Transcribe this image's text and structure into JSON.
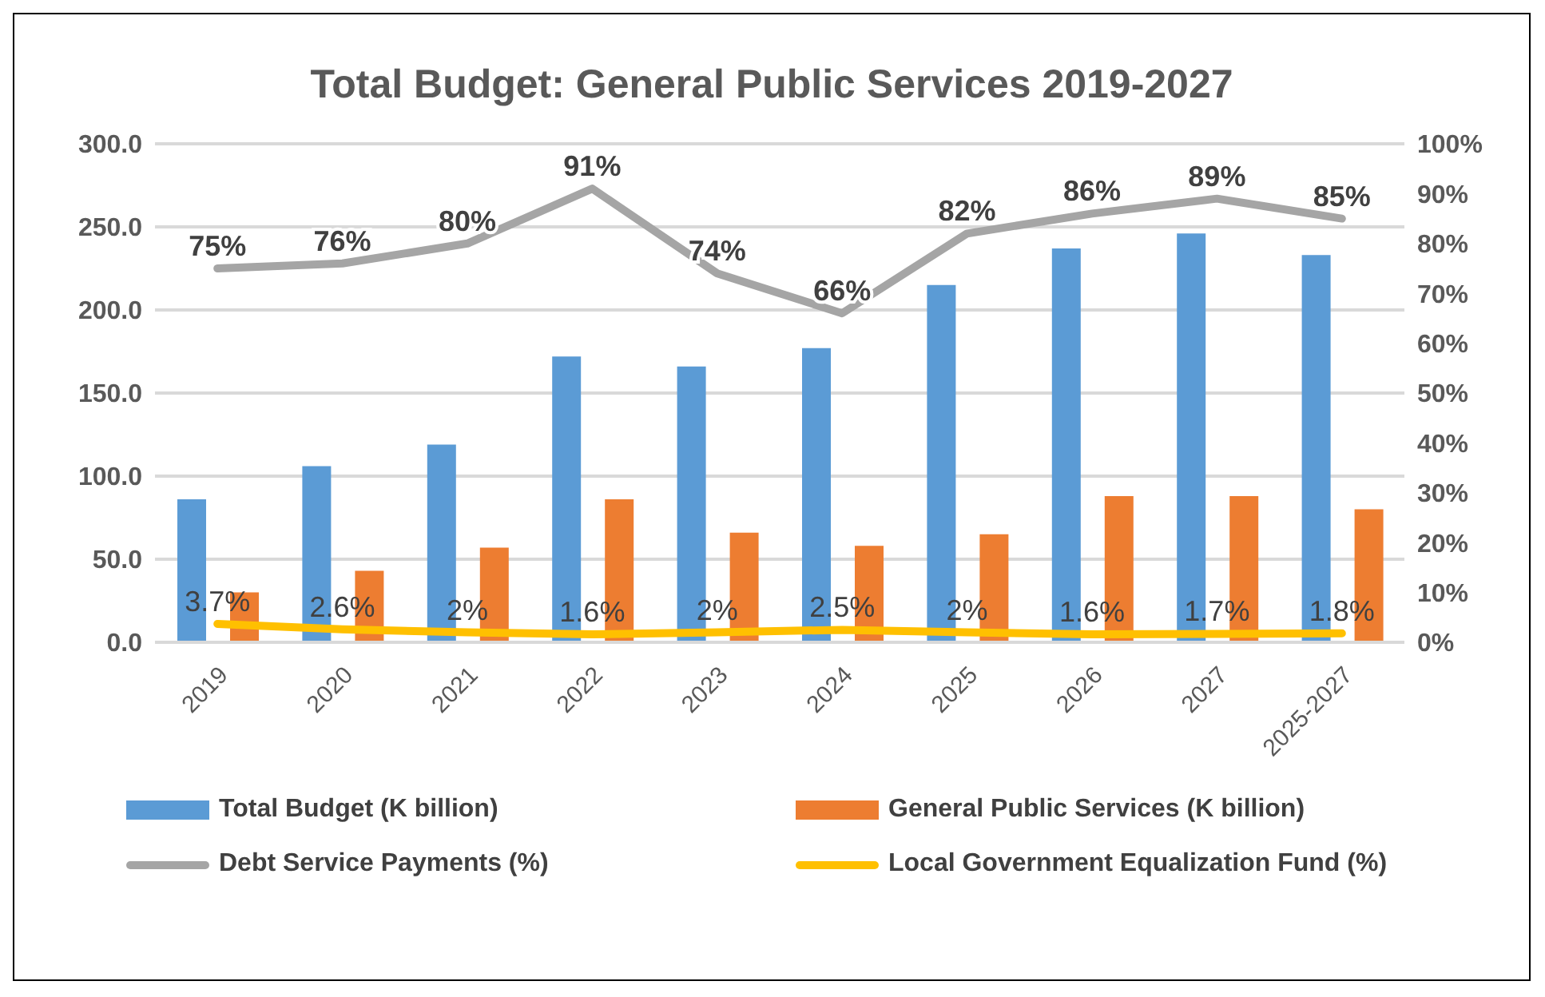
{
  "chart_data": {
    "type": "bar",
    "title": "Total Budget: General Public Services 2019-2027",
    "categories": [
      "2019",
      "2020",
      "2021",
      "2022",
      "2023",
      "2024",
      "2025",
      "2026",
      "2027",
      "2025-2027"
    ],
    "series": [
      {
        "name": "Total Budget (K billion)",
        "color": "#5b9bd5",
        "values": [
          86,
          106,
          119,
          172,
          166,
          177,
          215,
          237,
          246,
          233
        ]
      },
      {
        "name": "General Public Services (K billion)",
        "color": "#ed7d31",
        "values": [
          30,
          43,
          57,
          86,
          66,
          58,
          65,
          88,
          88,
          80
        ]
      },
      {
        "name": "Debt Service Payments (%)",
        "type": "line",
        "axis": "y2",
        "color": "#a5a5a5",
        "values": [
          75,
          76,
          80,
          91,
          74,
          66,
          82,
          86,
          89,
          85
        ],
        "value_labels": [
          "75%",
          "76%",
          "80%",
          "91%",
          "74%",
          "66%",
          "82%",
          "86%",
          "89%",
          "85%"
        ]
      },
      {
        "name": "Local Government Equalization Fund (%)",
        "type": "line",
        "axis": "y2",
        "color": "#ffc000",
        "values": [
          3.7,
          2.6,
          2,
          1.6,
          2,
          2.5,
          2,
          1.6,
          1.7,
          1.8
        ],
        "value_labels": [
          "3.7%",
          "2.6%",
          "2%",
          "1.6%",
          "2%",
          "2.5%",
          "2%",
          "1.6%",
          "1.7%",
          "1.8%"
        ]
      }
    ],
    "ylim": [
      0,
      300
    ],
    "yticks": [
      {
        "value": 0,
        "label": "0.0"
      },
      {
        "value": 50,
        "label": "50.0"
      },
      {
        "value": 100,
        "label": "100.0"
      },
      {
        "value": 150,
        "label": "150.0"
      },
      {
        "value": 200,
        "label": "200.0"
      },
      {
        "value": 250,
        "label": "250.0"
      },
      {
        "value": 300,
        "label": "300.0"
      }
    ],
    "y2lim": [
      0,
      100
    ],
    "y2ticks": [
      {
        "value": 0,
        "label": "0%"
      },
      {
        "value": 10,
        "label": "10%"
      },
      {
        "value": 20,
        "label": "20%"
      },
      {
        "value": 30,
        "label": "30%"
      },
      {
        "value": 40,
        "label": "40%"
      },
      {
        "value": 50,
        "label": "50%"
      },
      {
        "value": 60,
        "label": "60%"
      },
      {
        "value": 70,
        "label": "70%"
      },
      {
        "value": 80,
        "label": "80%"
      },
      {
        "value": 90,
        "label": "90%"
      },
      {
        "value": 100,
        "label": "100%"
      }
    ],
    "grid": "y",
    "legend": "bottom",
    "marker": "none"
  }
}
